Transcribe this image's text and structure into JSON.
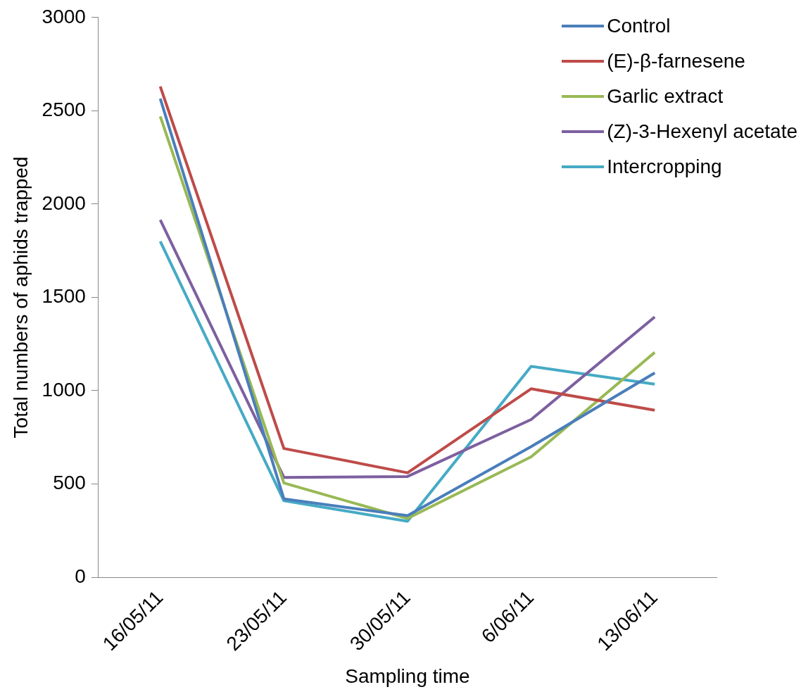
{
  "chart_data": {
    "type": "line",
    "xlabel": "Sampling time",
    "ylabel": "Total numbers of aphids trapped",
    "categories": [
      "16/05/11",
      "23/05/11",
      "30/05/11",
      "6/06/11",
      "13/06/11"
    ],
    "series": [
      {
        "name": "Control",
        "color": "#4a7ebb",
        "values": [
          2565,
          420,
          330,
          700,
          1095
        ]
      },
      {
        "name": "(E)-β-farnesene",
        "color": "#be4b48",
        "values": [
          2630,
          690,
          560,
          1010,
          895
        ]
      },
      {
        "name": "Garlic extract",
        "color": "#98b954",
        "values": [
          2470,
          505,
          315,
          645,
          1205
        ]
      },
      {
        "name": "(Z)-3-Hexenyl acetate",
        "color": "#7d60a0",
        "values": [
          1915,
          535,
          540,
          845,
          1395
        ]
      },
      {
        "name": "Intercropping",
        "color": "#46aac5",
        "values": [
          1800,
          410,
          300,
          1130,
          1035
        ]
      }
    ],
    "ylim": [
      0,
      3000
    ],
    "yticks": [
      0,
      500,
      1000,
      1500,
      2000,
      2500,
      3000
    ],
    "grid": false,
    "legend": "top right",
    "marker": "none",
    "line_style": "solid"
  }
}
